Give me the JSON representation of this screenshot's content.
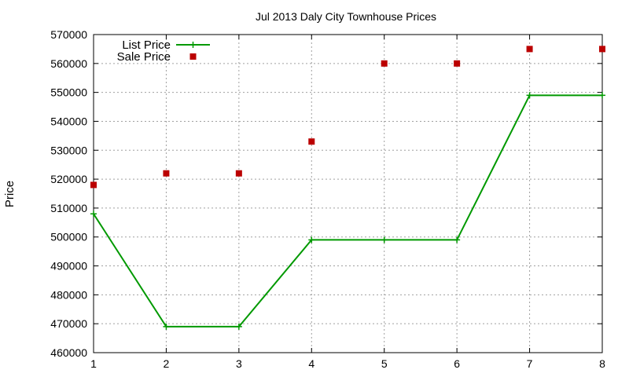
{
  "chart_data": {
    "type": "line",
    "title": "Jul 2013 Daly City Townhouse Prices",
    "xlabel": "",
    "ylabel": "Price",
    "xlim": [
      1,
      8
    ],
    "ylim": [
      460000,
      570000
    ],
    "x_ticks": [
      1,
      2,
      3,
      4,
      5,
      6,
      7,
      8
    ],
    "y_ticks": [
      460000,
      470000,
      480000,
      490000,
      500000,
      510000,
      520000,
      530000,
      540000,
      550000,
      560000,
      570000
    ],
    "grid": true,
    "legend_position": "top-left",
    "series": [
      {
        "name": "List Price",
        "style": "line-with-plus-markers",
        "color": "#009900",
        "x": [
          1,
          2,
          3,
          4,
          5,
          6,
          7,
          8
        ],
        "y": [
          508000,
          469000,
          469000,
          499000,
          499000,
          499000,
          549000,
          549000
        ]
      },
      {
        "name": "Sale Price",
        "style": "square-markers",
        "color": "#bb0000",
        "x": [
          1,
          2,
          3,
          4,
          5,
          6,
          7,
          8
        ],
        "y": [
          518000,
          522000,
          522000,
          533000,
          560000,
          560000,
          565000,
          565000
        ]
      }
    ]
  }
}
